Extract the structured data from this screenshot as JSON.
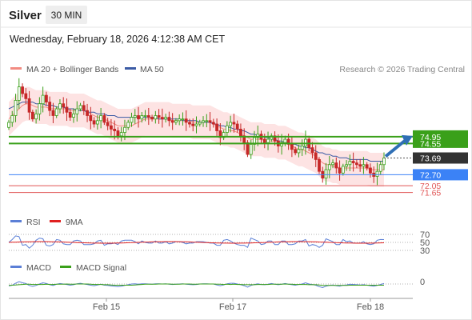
{
  "header": {
    "instrument": "Silver",
    "timeframe": "30 MIN",
    "datetime": "Wednesday, February 18, 2026 4:12:38 AM CET",
    "source": "Research © 2026 Trading Central"
  },
  "legend": {
    "price": [
      {
        "label": "MA 20 + Bollinger Bands",
        "color": "#f28b82"
      },
      {
        "label": "MA 50",
        "color": "#3b5ba5"
      }
    ],
    "rsi": [
      {
        "label": "RSI",
        "color": "#5b7fd6"
      },
      {
        "label": "9MA",
        "color": "#e02020"
      }
    ],
    "macd": [
      {
        "label": "MACD",
        "color": "#5b7fd6"
      },
      {
        "label": "MACD Signal",
        "color": "#3aa01a"
      }
    ]
  },
  "colors": {
    "up": "#3aa01a",
    "down": "#c62828",
    "band_fill": "#fde3e3",
    "resistance": "#3aa01a",
    "pivot": "#3b82f6",
    "support": "#e05555",
    "current": "#333333",
    "arrow": "#2f6fb5"
  },
  "chart_data": [
    {
      "type": "candlestick",
      "name": "price",
      "x_ticks": [
        "Feb 15",
        "Feb 17",
        "Feb 18"
      ],
      "ylim": [
        71.3,
        78.4
      ],
      "levels": [
        {
          "label": "74.95",
          "value": 74.95,
          "kind": "resistance"
        },
        {
          "label": "74.55",
          "value": 74.55,
          "kind": "resistance"
        },
        {
          "label": "73.69",
          "value": 73.69,
          "kind": "current"
        },
        {
          "label": "72.70",
          "value": 72.7,
          "kind": "pivot"
        },
        {
          "label": "72.05",
          "value": 72.05,
          "kind": "support"
        },
        {
          "label": "71.65",
          "value": 71.65,
          "kind": "support"
        }
      ],
      "close_series": [
        75.8,
        76.2,
        77.1,
        77.9,
        77.5,
        77.2,
        76.4,
        76.0,
        76.3,
        76.9,
        77.4,
        77.0,
        76.5,
        76.2,
        76.6,
        76.9,
        76.7,
        76.4,
        76.1,
        76.3,
        76.6,
        76.8,
        76.5,
        76.2,
        75.9,
        75.7,
        75.9,
        76.2,
        75.8,
        75.6,
        75.4,
        75.3,
        75.0,
        75.2,
        75.5,
        75.8,
        76.1,
        76.2,
        76.0,
        76.2,
        76.2,
        76.1,
        76.0,
        76.2,
        76.1,
        76.0,
        76.1,
        75.9,
        75.8,
        75.9,
        76.0,
        76.0,
        75.8,
        75.7,
        75.6,
        75.7,
        75.8,
        75.9,
        75.9,
        75.8,
        75.7,
        75.3,
        74.9,
        75.2,
        75.6,
        75.8,
        75.7,
        75.4,
        75.0,
        74.6,
        73.9,
        74.5,
        74.9,
        75.1,
        74.8,
        74.6,
        74.8,
        75.0,
        74.7,
        74.4,
        74.6,
        74.8,
        74.5,
        74.2,
        74.0,
        74.2,
        74.4,
        74.8,
        74.3,
        74.0,
        73.6,
        72.9,
        72.5,
        73.0,
        73.3,
        73.4,
        73.1,
        72.8,
        73.2,
        73.3,
        73.5,
        73.4,
        73.3,
        73.2,
        73.3,
        73.1,
        72.8,
        72.6,
        72.9,
        73.3,
        73.69
      ],
      "ma20": [
        76.0,
        76.2,
        76.4,
        76.6,
        76.8,
        76.9,
        76.9,
        76.8,
        76.7,
        76.7,
        76.7,
        76.7,
        76.6,
        76.6,
        76.6,
        76.6,
        76.6,
        76.6,
        76.5,
        76.5,
        76.5,
        76.5,
        76.5,
        76.4,
        76.3,
        76.2,
        76.1,
        76.1,
        76.0,
        75.9,
        75.8,
        75.7,
        75.6,
        75.6,
        75.6,
        75.6,
        75.6,
        75.7,
        75.8,
        75.9,
        76.0,
        76.0,
        76.0,
        76.0,
        76.0,
        76.0,
        76.0,
        76.0,
        75.9,
        75.9,
        75.9,
        75.9,
        75.9,
        75.9,
        75.8,
        75.8,
        75.8,
        75.8,
        75.8,
        75.8,
        75.7,
        75.6,
        75.5,
        75.4,
        75.4,
        75.3,
        75.3,
        75.2,
        75.1,
        75.0,
        74.9,
        74.8,
        74.8,
        74.8,
        74.8,
        74.7,
        74.7,
        74.7,
        74.7,
        74.6,
        74.6,
        74.6,
        74.5,
        74.4,
        74.3,
        74.2,
        74.2,
        74.1,
        74.0,
        73.9,
        73.8,
        73.6,
        73.4,
        73.3,
        73.3,
        73.2,
        73.2,
        73.1,
        73.1,
        73.1,
        73.1,
        73.1,
        73.1,
        73.1,
        73.1,
        73.1,
        73.0,
        73.0,
        73.0,
        73.0,
        73.0
      ],
      "ma50": [
        76.6,
        76.7,
        76.8,
        76.9,
        77.0,
        77.0,
        77.0,
        77.0,
        76.9,
        76.9,
        76.9,
        76.8,
        76.8,
        76.8,
        76.7,
        76.7,
        76.7,
        76.6,
        76.6,
        76.6,
        76.5,
        76.5,
        76.5,
        76.4,
        76.4,
        76.4,
        76.3,
        76.3,
        76.3,
        76.2,
        76.2,
        76.2,
        76.1,
        76.1,
        76.1,
        76.1,
        76.1,
        76.1,
        76.1,
        76.1,
        76.1,
        76.1,
        76.1,
        76.1,
        76.0,
        76.0,
        76.0,
        76.0,
        76.0,
        76.0,
        76.0,
        75.9,
        75.9,
        75.9,
        75.9,
        75.9,
        75.8,
        75.8,
        75.8,
        75.8,
        75.7,
        75.7,
        75.6,
        75.6,
        75.5,
        75.5,
        75.4,
        75.4,
        75.3,
        75.3,
        75.2,
        75.1,
        75.1,
        75.0,
        75.0,
        74.9,
        74.9,
        74.8,
        74.8,
        74.7,
        74.7,
        74.6,
        74.6,
        74.5,
        74.5,
        74.4,
        74.4,
        74.3,
        74.3,
        74.2,
        74.1,
        74.0,
        74.0,
        73.9,
        73.9,
        73.8,
        73.8,
        73.7,
        73.7,
        73.7,
        73.6,
        73.6,
        73.6,
        73.6,
        73.6,
        73.6,
        73.5,
        73.5,
        73.5,
        73.5,
        73.5
      ],
      "band_width": 1.0
    },
    {
      "type": "line",
      "name": "RSI",
      "levels": [
        70,
        50,
        30
      ],
      "ylim": [
        20,
        80
      ]
    },
    {
      "type": "line",
      "name": "MACD",
      "levels": [
        0
      ]
    }
  ]
}
